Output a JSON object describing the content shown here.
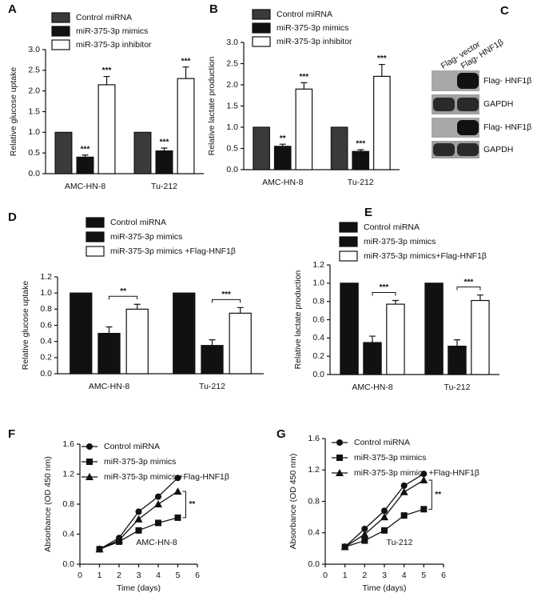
{
  "chart_data": [
    {
      "type": "bar",
      "panel_label": "A",
      "y_label": "Relative glucose uptake",
      "categories": [
        "AMC-HN-8",
        "Tu-212"
      ],
      "series": [
        {
          "name": "Control miRNA",
          "color": "#3a3a3a",
          "values": [
            1,
            1
          ],
          "errors": [
            0,
            0
          ]
        },
        {
          "name": "miR-375-3p mimics",
          "color": "#111111",
          "values": [
            0.4,
            0.55
          ],
          "errors": [
            0.05,
            0.07
          ],
          "annotations": [
            "***",
            "***"
          ]
        },
        {
          "name": "miR-375-3p inhibitor",
          "color": "#ffffff",
          "values": [
            2.15,
            2.3
          ],
          "errors": [
            0.2,
            0.28
          ],
          "annotations": [
            "***",
            "***"
          ]
        }
      ],
      "ylim": [
        0,
        3
      ],
      "yticks": [
        {
          "value": 0,
          "label": "0.0"
        },
        {
          "value": 0.5,
          "label": "0.5"
        },
        {
          "value": 1,
          "label": "1.0"
        },
        {
          "value": 1.5,
          "label": "1.5"
        },
        {
          "value": 2,
          "label": "2.0"
        },
        {
          "value": 2.5,
          "label": "2.5"
        },
        {
          "value": 3,
          "label": "3.0"
        }
      ]
    },
    {
      "type": "bar",
      "panel_label": "B",
      "y_label": "Relative lactate production",
      "categories": [
        "AMC-HN-8",
        "Tu-212"
      ],
      "series": [
        {
          "name": "Control miRNA",
          "color": "#3a3a3a",
          "values": [
            1,
            1
          ],
          "errors": [
            0,
            0
          ]
        },
        {
          "name": "miR-375-3p mimics",
          "color": "#111111",
          "values": [
            0.55,
            0.43
          ],
          "errors": [
            0.05,
            0.04
          ],
          "annotations": [
            "**",
            "***"
          ]
        },
        {
          "name": "miR-375-3p inhibitor",
          "color": "#ffffff",
          "values": [
            1.9,
            2.2
          ],
          "errors": [
            0.15,
            0.28
          ],
          "annotations": [
            "***",
            "***"
          ]
        }
      ],
      "ylim": [
        0,
        3
      ],
      "yticks": [
        {
          "value": 0,
          "label": "0.0"
        },
        {
          "value": 0.5,
          "label": "0.5"
        },
        {
          "value": 1,
          "label": "1.0"
        },
        {
          "value": 1.5,
          "label": "1.5"
        },
        {
          "value": 2,
          "label": "2.0"
        },
        {
          "value": 2.5,
          "label": "2.5"
        },
        {
          "value": 3,
          "label": "3.0"
        }
      ]
    },
    {
      "type": "bar",
      "panel_label": "D",
      "y_label": "Relative glucose uptake",
      "categories": [
        "AMC-HN-8",
        "Tu-212"
      ],
      "series": [
        {
          "name": "Control miRNA",
          "color": "#111111",
          "values": [
            1,
            1
          ],
          "errors": [
            0,
            0
          ]
        },
        {
          "name": "miR-375-3p mimics",
          "color": "#111111",
          "values": [
            0.5,
            0.35
          ],
          "errors": [
            0.08,
            0.07
          ]
        },
        {
          "name": "miR-375-3p mimics +Flag-HNF1β",
          "color": "#ffffff",
          "values": [
            0.8,
            0.75
          ],
          "errors": [
            0.06,
            0.07
          ]
        }
      ],
      "brackets": [
        "**",
        "***"
      ],
      "ylim": [
        0,
        1.2
      ],
      "yticks": [
        {
          "value": 0,
          "label": "0.0"
        },
        {
          "value": 0.2,
          "label": "0.2"
        },
        {
          "value": 0.4,
          "label": "0.4"
        },
        {
          "value": 0.6,
          "label": "0.6"
        },
        {
          "value": 0.8,
          "label": "0.8"
        },
        {
          "value": 1,
          "label": "1.0"
        },
        {
          "value": 1.2,
          "label": "1.2"
        }
      ]
    },
    {
      "type": "bar",
      "panel_label": "E",
      "y_label": "Relative lactate production",
      "categories": [
        "AMC-HN-8",
        "Tu-212"
      ],
      "series": [
        {
          "name": "Control miRNA",
          "color": "#111111",
          "values": [
            1,
            1
          ],
          "errors": [
            0,
            0
          ]
        },
        {
          "name": "miR-375-3p mimics",
          "color": "#111111",
          "values": [
            0.35,
            0.31
          ],
          "errors": [
            0.07,
            0.07
          ]
        },
        {
          "name": "miR-375-3p mimics+Flag-HNF1β",
          "color": "#ffffff",
          "values": [
            0.77,
            0.81
          ],
          "errors": [
            0.04,
            0.06
          ]
        }
      ],
      "brackets": [
        "***",
        "***"
      ],
      "ylim": [
        0,
        1.2
      ],
      "yticks": [
        {
          "value": 0,
          "label": "0.0"
        },
        {
          "value": 0.2,
          "label": "0.2"
        },
        {
          "value": 0.4,
          "label": "0.4"
        },
        {
          "value": 0.6,
          "label": "0.6"
        },
        {
          "value": 0.8,
          "label": "0.8"
        },
        {
          "value": 1,
          "label": "1.0"
        },
        {
          "value": 1.2,
          "label": "1.2"
        }
      ]
    },
    {
      "type": "line",
      "panel_label": "F",
      "x_label": "Time (days)",
      "y_label": "Absorbance (OD 450 nm)",
      "cell_line": "AMC-HN-8",
      "significance": "**",
      "x": [
        1,
        2,
        3,
        4,
        5
      ],
      "series": [
        {
          "name": "Control miRNA",
          "color": "#111111",
          "marker": "circle",
          "values": [
            0.2,
            0.35,
            0.7,
            0.9,
            1.15
          ]
        },
        {
          "name": "miR-375-3p mimics",
          "color": "#111111",
          "marker": "square",
          "values": [
            0.2,
            0.3,
            0.45,
            0.55,
            0.62
          ]
        },
        {
          "name": "miR-375-3p mimics +Flag-HNF1β",
          "color": "#111111",
          "marker": "triangle",
          "values": [
            0.2,
            0.32,
            0.6,
            0.8,
            0.97
          ]
        }
      ],
      "xlim": [
        0,
        6
      ],
      "xticks": [
        0,
        1,
        2,
        3,
        4,
        5,
        6
      ],
      "ylim": [
        0,
        1.6
      ],
      "yticks": [
        {
          "value": 0,
          "label": "0.0"
        },
        {
          "value": 0.4,
          "label": "0.4"
        },
        {
          "value": 0.8,
          "label": "0.8"
        },
        {
          "value": 1.2,
          "label": "1.2"
        },
        {
          "value": 1.6,
          "label": "1.6"
        }
      ]
    },
    {
      "type": "line",
      "panel_label": "G",
      "x_label": "Time (days)",
      "y_label": "Absorbance (OD 450 nm)",
      "cell_line": "Tu-212",
      "significance": "**",
      "x": [
        1,
        2,
        3,
        4,
        5
      ],
      "series": [
        {
          "name": "Control miRNA",
          "color": "#111111",
          "marker": "circle",
          "values": [
            0.22,
            0.45,
            0.68,
            1.0,
            1.15
          ]
        },
        {
          "name": "miR-375-3p mimics",
          "color": "#111111",
          "marker": "square",
          "values": [
            0.22,
            0.3,
            0.43,
            0.62,
            0.7
          ]
        },
        {
          "name": "miR-375-3p mimics +Flag-HNF1β",
          "color": "#111111",
          "marker": "triangle",
          "values": [
            0.22,
            0.38,
            0.6,
            0.92,
            1.07
          ]
        }
      ],
      "xlim": [
        0,
        6
      ],
      "xticks": [
        0,
        1,
        2,
        3,
        4,
        5,
        6
      ],
      "ylim": [
        0,
        1.6
      ],
      "yticks": [
        {
          "value": 0,
          "label": "0.0"
        },
        {
          "value": 0.4,
          "label": "0.4"
        },
        {
          "value": 0.8,
          "label": "0.8"
        },
        {
          "value": 1.2,
          "label": "1.2"
        },
        {
          "value": 1.6,
          "label": "1.6"
        }
      ]
    }
  ],
  "blot": {
    "panel_label": "C",
    "lanes": [
      "Flag- vector",
      "Flag- HNF1β"
    ],
    "rows": [
      "Flag- HNF1β",
      "GAPDH",
      "Flag- HNF1β",
      "GAPDH"
    ]
  }
}
